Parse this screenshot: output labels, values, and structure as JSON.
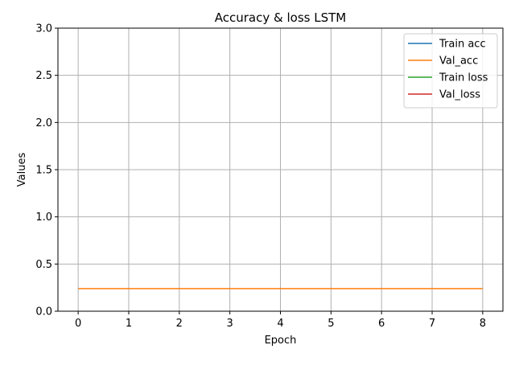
{
  "chart_data": {
    "type": "line",
    "title": "Accuracy & loss LSTM",
    "xlabel": "Epoch",
    "ylabel": "Values",
    "x": [
      0,
      1,
      2,
      3,
      4,
      5,
      6,
      7,
      8
    ],
    "xlim": [
      -0.4,
      8.4
    ],
    "ylim": [
      0,
      3.0
    ],
    "xticks": [
      "0",
      "1",
      "2",
      "3",
      "4",
      "5",
      "6",
      "7",
      "8"
    ],
    "yticks": [
      "0.0",
      "0.5",
      "1.0",
      "1.5",
      "2.0",
      "2.5",
      "3.0"
    ],
    "grid": true,
    "legend_position": "top-right",
    "series": [
      {
        "name": "Train acc",
        "color": "#1f77b4",
        "values": [
          null,
          null,
          null,
          null,
          null,
          null,
          null,
          null,
          null
        ]
      },
      {
        "name": "Val_acc",
        "color": "#ff7f0e",
        "values": [
          0.24,
          0.24,
          0.24,
          0.24,
          0.24,
          0.24,
          0.24,
          0.24,
          0.24
        ]
      },
      {
        "name": "Train loss",
        "color": "#2ca02c",
        "values": [
          null,
          null,
          null,
          null,
          null,
          null,
          null,
          null,
          null
        ]
      },
      {
        "name": "Val_loss",
        "color": "#d62728",
        "values": [
          null,
          null,
          null,
          null,
          null,
          null,
          null,
          null,
          null
        ]
      }
    ]
  }
}
